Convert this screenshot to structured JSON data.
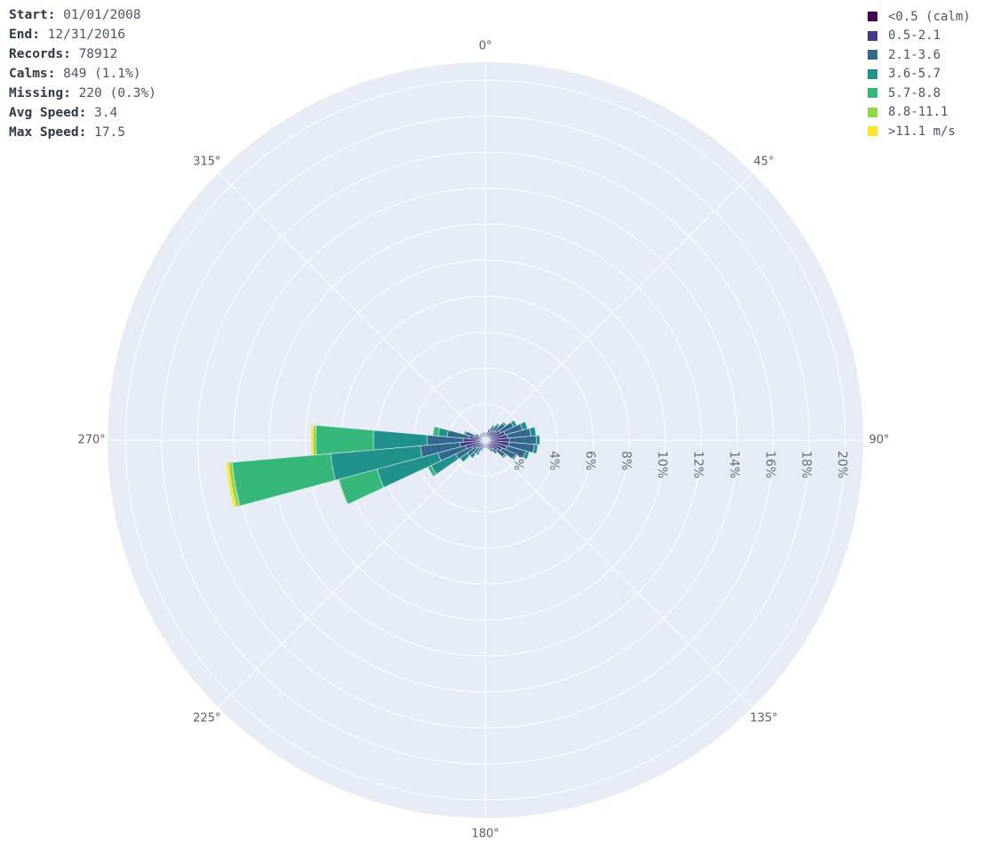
{
  "summary": {
    "start_label": "Start:",
    "start_value": "01/01/2008",
    "end_label": "End:",
    "end_value": "12/31/2016",
    "records_label": "Records:",
    "records_value": "78912",
    "calms_label": "Calms:",
    "calms_value": "849 (1.1%)",
    "missing_label": "Missing:",
    "missing_value": "220 (0.3%)",
    "avg_label": "Avg Speed:",
    "avg_value": "3.4",
    "max_label": "Max Speed:",
    "max_value": "17.5"
  },
  "chart_data": {
    "type": "barpolar",
    "angular_axis": {
      "direction": "clockwise",
      "rotation_zero": "north",
      "tick_labels": [
        "0°",
        "45°",
        "90°",
        "135°",
        "180°",
        "225°",
        "270°",
        "315°"
      ],
      "tick_values": [
        0,
        45,
        90,
        135,
        180,
        225,
        270,
        315
      ]
    },
    "radial_axis": {
      "range": [
        0,
        21
      ],
      "tick_values": [
        2,
        4,
        6,
        8,
        10,
        12,
        14,
        16,
        18,
        20
      ],
      "tick_labels": [
        "2%",
        "4%",
        "6%",
        "8%",
        "10%",
        "12%",
        "14%",
        "16%",
        "18%",
        "20%"
      ],
      "angle": 90
    },
    "direction_bin_width": 10,
    "directions": [
      0,
      10,
      20,
      30,
      40,
      50,
      60,
      70,
      80,
      90,
      100,
      110,
      120,
      130,
      140,
      150,
      160,
      170,
      180,
      190,
      200,
      210,
      220,
      230,
      240,
      250,
      260,
      270,
      280,
      290,
      300,
      310,
      320,
      330,
      340,
      350
    ],
    "series": [
      {
        "name": "<0.5 (calm)",
        "color": "#440154",
        "values": [
          0.03,
          0.03,
          0.03,
          0.03,
          0.03,
          0.03,
          0.03,
          0.03,
          0.03,
          0.03,
          0.03,
          0.03,
          0.03,
          0.03,
          0.03,
          0.03,
          0.03,
          0.03,
          0.03,
          0.03,
          0.03,
          0.03,
          0.03,
          0.03,
          0.03,
          0.03,
          0.03,
          0.03,
          0.03,
          0.03,
          0.03,
          0.03,
          0.03,
          0.03,
          0.03,
          0.03
        ]
      },
      {
        "name": "0.5-2.1",
        "color": "#443a83",
        "values": [
          0.3,
          0.3,
          0.4,
          0.5,
          0.6,
          0.7,
          0.9,
          1.1,
          1.2,
          1.3,
          1.3,
          1.2,
          1.0,
          0.8,
          0.6,
          0.5,
          0.4,
          0.3,
          0.3,
          0.3,
          0.3,
          0.4,
          0.5,
          0.6,
          0.8,
          1.1,
          1.4,
          1.2,
          0.9,
          0.6,
          0.4,
          0.3,
          0.3,
          0.3,
          0.3,
          0.3
        ]
      },
      {
        "name": "2.1-3.6",
        "color": "#31688e",
        "values": [
          0.1,
          0.1,
          0.2,
          0.3,
          0.4,
          0.6,
          0.8,
          1.0,
          1.3,
          1.5,
          1.4,
          1.1,
          0.8,
          0.5,
          0.3,
          0.2,
          0.1,
          0.1,
          0.1,
          0.1,
          0.2,
          0.3,
          0.4,
          0.6,
          1.0,
          1.6,
          2.2,
          2.0,
          1.2,
          0.5,
          0.2,
          0.1,
          0.1,
          0.1,
          0.1,
          0.1
        ]
      },
      {
        "name": "3.6-5.7",
        "color": "#21918c",
        "values": [
          0,
          0,
          0.05,
          0.1,
          0.1,
          0.1,
          0.2,
          0.3,
          0.3,
          0.2,
          0.2,
          0.2,
          0.1,
          0.1,
          0,
          0,
          0,
          0,
          0,
          0,
          0.1,
          0.2,
          0.3,
          0.5,
          1.5,
          3.5,
          5.0,
          3.0,
          0.5,
          0.1,
          0,
          0,
          0,
          0,
          0,
          0
        ]
      },
      {
        "name": "5.7-8.8",
        "color": "#35b779",
        "values": [
          0,
          0,
          0,
          0,
          0,
          0,
          0,
          0,
          0,
          0,
          0,
          0,
          0,
          0,
          0,
          0,
          0,
          0,
          0,
          0,
          0,
          0,
          0,
          0,
          0.2,
          2.2,
          5.5,
          3.2,
          0.3,
          0,
          0,
          0,
          0,
          0,
          0,
          0
        ]
      },
      {
        "name": "8.8-11.1",
        "color": "#90d743",
        "values": [
          0,
          0,
          0,
          0,
          0,
          0,
          0,
          0,
          0,
          0,
          0,
          0,
          0,
          0,
          0,
          0,
          0,
          0,
          0,
          0,
          0,
          0,
          0,
          0,
          0,
          0.05,
          0.2,
          0.15,
          0,
          0,
          0,
          0,
          0,
          0,
          0,
          0
        ]
      },
      {
        "name": ">11.1 m/s",
        "color": "#fde725",
        "values": [
          0,
          0,
          0,
          0,
          0,
          0,
          0,
          0,
          0,
          0,
          0,
          0,
          0,
          0,
          0,
          0,
          0,
          0,
          0,
          0,
          0,
          0,
          0,
          0,
          0,
          0,
          0.15,
          0.12,
          0,
          0,
          0,
          0,
          0,
          0,
          0,
          0
        ]
      }
    ]
  },
  "colors": {
    "polar_bg": "#e5ecf6",
    "grid": "#ffffff",
    "text": "#4a5568"
  }
}
